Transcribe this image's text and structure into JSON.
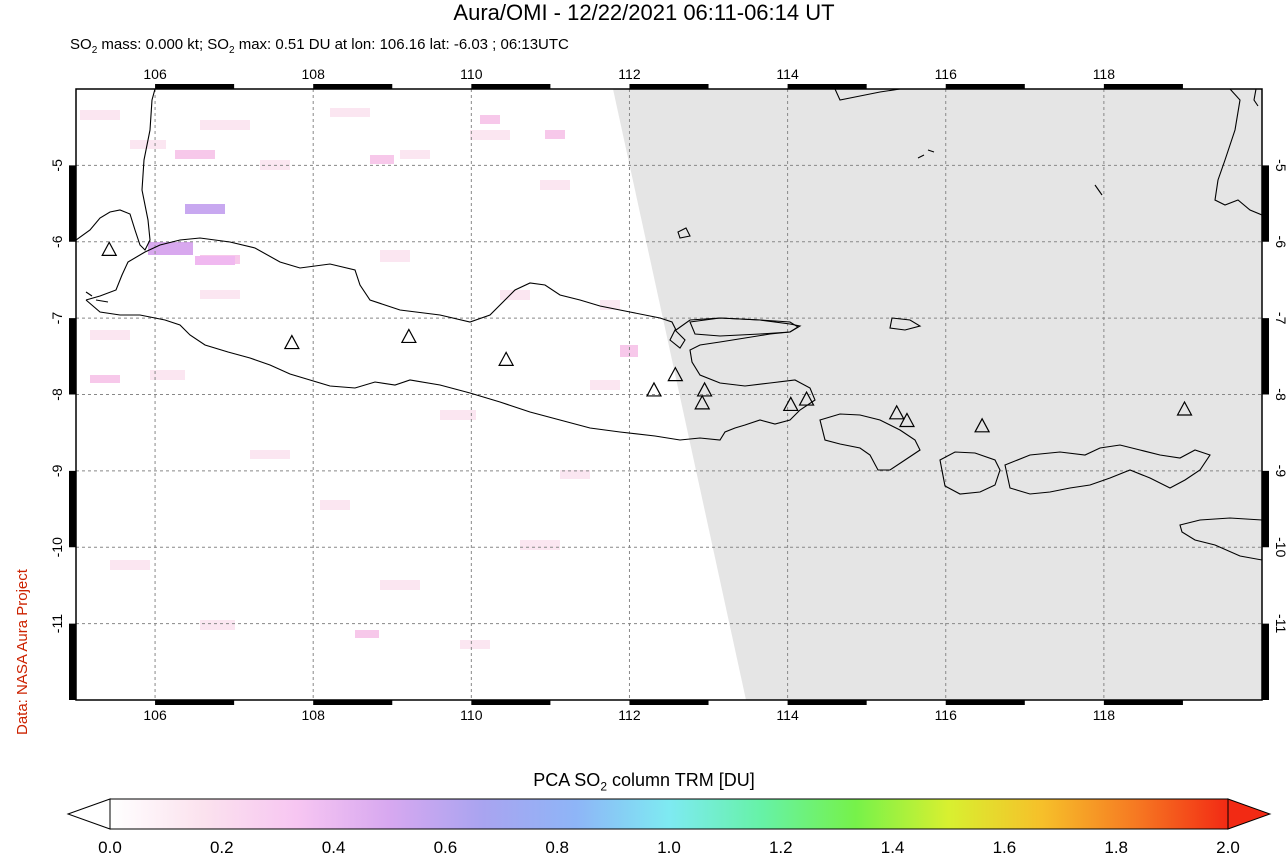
{
  "header": {
    "title": "Aura/OMI - 12/22/2021 06:11-06:14 UT",
    "subtitle_pre": "SO",
    "subtitle_sub": "2",
    "subtitle_mid": " mass: 0.000 kt; SO",
    "subtitle_sub2": "2",
    "subtitle_post": " max: 0.51 DU at lon: 106.16 lat: -6.03 ; 06:13UTC"
  },
  "credit": "Data: NASA Aura Project",
  "map": {
    "lon_range": [
      105.0,
      120.0
    ],
    "lat_range": [
      -12.0,
      -4.0
    ],
    "lon_ticks": [
      "106",
      "108",
      "110",
      "112",
      "114",
      "116",
      "118"
    ],
    "lon_tick_values": [
      106,
      108,
      110,
      112,
      114,
      116,
      118
    ],
    "lat_ticks": [
      "-5",
      "-6",
      "-7",
      "-8",
      "-9",
      "-10",
      "-11"
    ],
    "lat_tick_values": [
      -5,
      -6,
      -7,
      -8,
      -9,
      -10,
      -11
    ],
    "no_data_color": "#e5e5e5",
    "volcanoes": [
      {
        "lon": 105.42,
        "lat": -6.1
      },
      {
        "lon": 107.73,
        "lat": -7.32
      },
      {
        "lon": 109.21,
        "lat": -7.24
      },
      {
        "lon": 110.44,
        "lat": -7.54
      },
      {
        "lon": 112.31,
        "lat": -7.94
      },
      {
        "lon": 112.58,
        "lat": -7.74
      },
      {
        "lon": 112.95,
        "lat": -7.94
      },
      {
        "lon": 112.92,
        "lat": -8.11
      },
      {
        "lon": 114.04,
        "lat": -8.13
      },
      {
        "lon": 114.24,
        "lat": -8.06
      },
      {
        "lon": 115.38,
        "lat": -8.24
      },
      {
        "lon": 115.51,
        "lat": -8.34
      },
      {
        "lon": 116.46,
        "lat": -8.41
      },
      {
        "lon": 119.02,
        "lat": -8.19
      }
    ]
  },
  "colorbar": {
    "title_pre": "PCA SO",
    "title_sub": "2",
    "title_post": " column TRM [DU]",
    "ticks": [
      "0.0",
      "0.2",
      "0.4",
      "0.6",
      "0.8",
      "1.0",
      "1.2",
      "1.4",
      "1.6",
      "1.8",
      "2.0"
    ],
    "colors": [
      "#ffffff",
      "#fbe2ee",
      "#f7c6f2",
      "#d7a8f0",
      "#a9a4f0",
      "#8eb5f7",
      "#7eeaf2",
      "#66f2a6",
      "#76f24a",
      "#d8f030",
      "#f6c02a",
      "#f67a22",
      "#f22a14"
    ]
  }
}
